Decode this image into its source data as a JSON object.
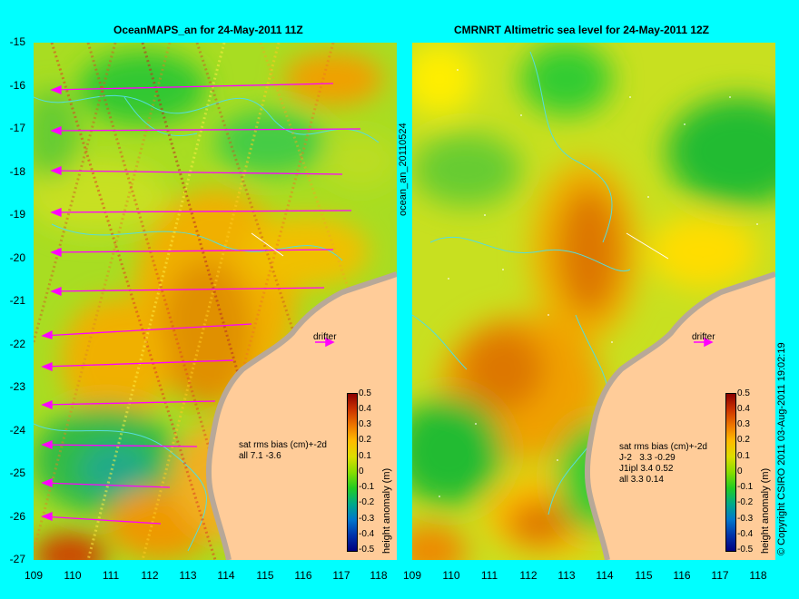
{
  "left_panel": {
    "title": "OceanMAPS_an for 24-May-2011 11Z",
    "stats_header": "sat rms bias (cm)+-2d",
    "stats_lines": [
      "all 7.1 -3.6"
    ],
    "drifter_label": "drifter"
  },
  "right_panel": {
    "title": "CMRNRT Altimetric sea level  for 24-May-2011 12Z",
    "stats_header": "sat rms bias (cm)+-2d",
    "stats_lines": [
      "J-2   3.3 -0.29",
      "J1ipl 3.4 0.52",
      "all 3.3 0.14"
    ],
    "drifter_label": "drifter"
  },
  "file_label": "ocean_an_20110524",
  "copyright": "© Copyright CSIRO 2011  03-Aug-2011 19:02:19",
  "colorbar": {
    "label": "height anomaly (m)",
    "ticks": [
      "0.5",
      "0.4",
      "0.3",
      "0.2",
      "0.1",
      "0",
      "-0.1",
      "-0.2",
      "-0.3",
      "-0.4",
      "-0.5"
    ]
  },
  "axes": {
    "lat_ticks": [
      "-15",
      "-16",
      "-17",
      "-18",
      "-19",
      "-20",
      "-21",
      "-22",
      "-23",
      "-24",
      "-25",
      "-26",
      "-27"
    ],
    "lon_ticks": [
      "109",
      "110",
      "111",
      "112",
      "113",
      "114",
      "115",
      "116",
      "117",
      "118"
    ]
  },
  "colors": {
    "background": "#00ffff",
    "land": "#ffcc99",
    "coast": "#b8a898",
    "current_arrows": "#ff00ff",
    "contours": "#55dddd"
  }
}
